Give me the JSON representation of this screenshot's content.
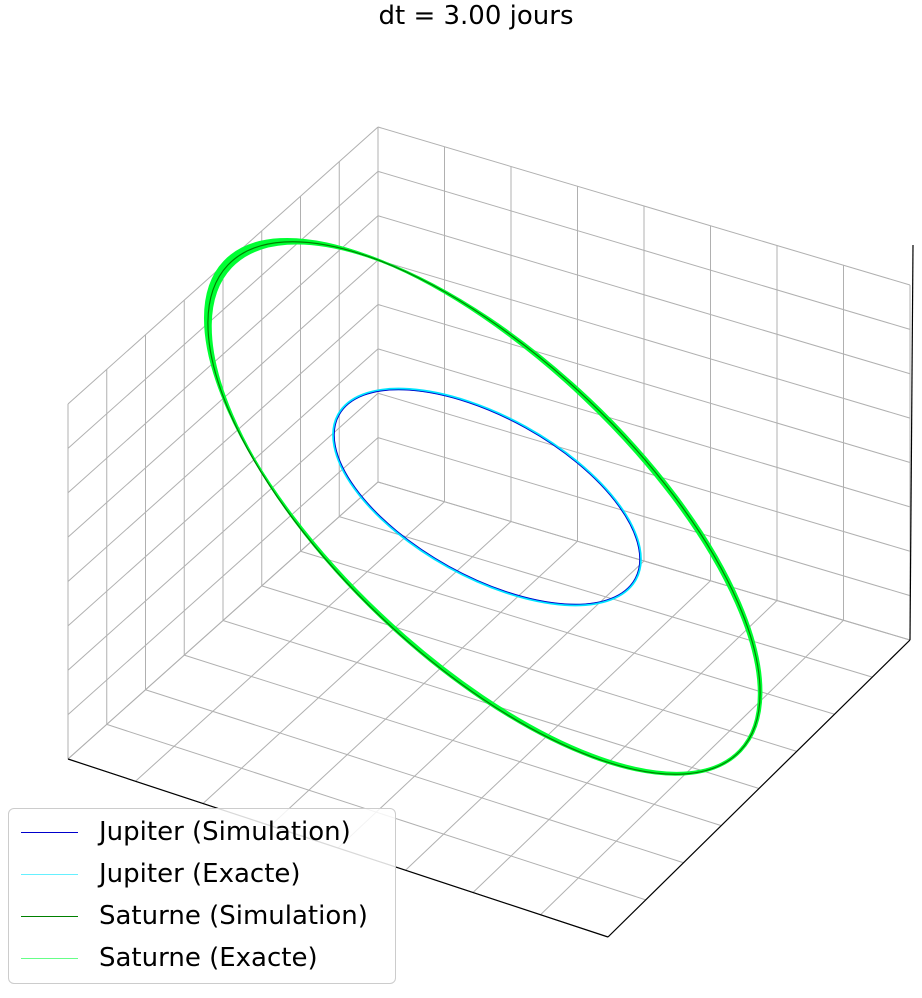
{
  "chart_data": {
    "type": "line",
    "projection": "3d",
    "title": "dt = 3.00 jours",
    "xlabel": "",
    "ylabel": "",
    "zlabel": "",
    "grid": true,
    "tick_labels_visible": false,
    "legend_position": "lower-left",
    "series": [
      {
        "name": "Jupiter (Simulation)",
        "color": "#0000cc",
        "shape": "ellipse"
      },
      {
        "name": "Jupiter (Exacte)",
        "color": "#00e5ff",
        "shape": "ellipse"
      },
      {
        "name": "Saturne (Simulation)",
        "color": "#008000",
        "shape": "ellipse"
      },
      {
        "name": "Saturne (Exacte)",
        "color": "#00ff33",
        "shape": "ellipse"
      }
    ]
  }
}
